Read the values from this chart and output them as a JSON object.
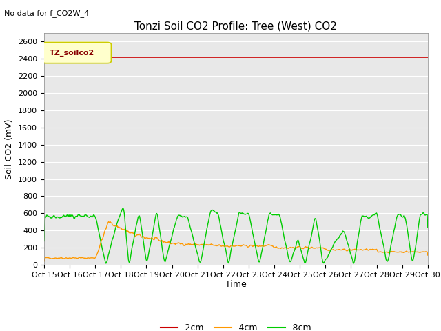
{
  "title": "Tonzi Soil CO2 Profile: Tree (West) CO2",
  "no_data_text": "No data for f_CO2W_4",
  "ylabel": "Soil CO2 (mV)",
  "xlabel": "Time",
  "ylim": [
    0,
    2700
  ],
  "yticks": [
    0,
    200,
    400,
    600,
    800,
    1000,
    1200,
    1400,
    1600,
    1800,
    2000,
    2200,
    2400,
    2600
  ],
  "xtick_labels": [
    "Oct 15",
    "Oct 16",
    "Oct 17",
    "Oct 18",
    "Oct 19",
    "Oct 20",
    "Oct 21",
    "Oct 22",
    "Oct 23",
    "Oct 24",
    "Oct 25",
    "Oct 26",
    "Oct 27",
    "Oct 28",
    "Oct 29",
    "Oct 30"
  ],
  "legend_label": "TZ_soilco2",
  "legend_bg": "#ffffcc",
  "legend_edge": "#cccc00",
  "line_neg2cm_color": "#cc0000",
  "line_neg4cm_color": "#ff9900",
  "line_neg8cm_color": "#00cc00",
  "line_neg2cm_label": "-2cm",
  "line_neg4cm_label": "-4cm",
  "line_neg8cm_label": "-8cm",
  "neg2cm_value": 2420,
  "background_color": "#e8e8e8",
  "title_fontsize": 11,
  "axis_label_fontsize": 9,
  "tick_fontsize": 8
}
